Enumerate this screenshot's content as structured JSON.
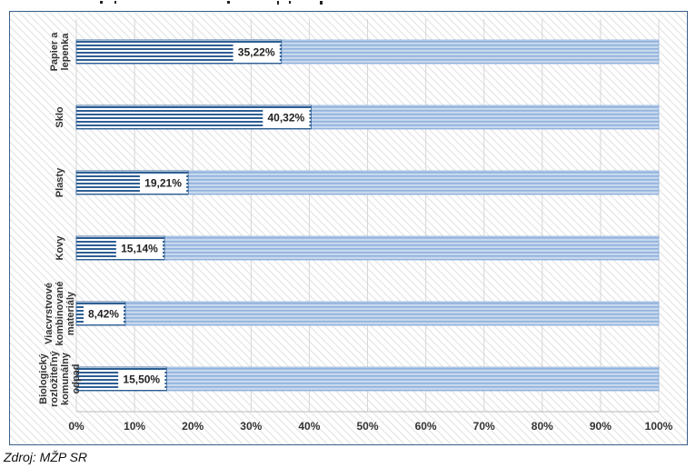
{
  "source_note": "Zdroj: MŽP SR",
  "colors": {
    "frame": "#3a5f8a",
    "bar_dark": "#2e5e93",
    "bar_light": "#a9c3e4",
    "grid": "#d6d6d6"
  },
  "chart_data": {
    "type": "bar",
    "orientation": "horizontal",
    "stacked": true,
    "categories": [
      [
        "Papier a",
        "lepenka"
      ],
      [
        "Sklo"
      ],
      [
        "Plasty"
      ],
      [
        "Kovy"
      ],
      [
        "Viacvrstvové",
        "kombinované",
        "materiály"
      ],
      [
        "Biologický",
        "rozložiteľný",
        "komunálny",
        "odpad"
      ]
    ],
    "values": [
      35.22,
      40.32,
      19.21,
      15.14,
      8.42,
      15.5
    ],
    "value_labels": [
      "35,22%",
      "40,32%",
      "19,21%",
      "15,14%",
      "8,42%",
      "15,50%"
    ],
    "xlim": [
      0,
      100
    ],
    "xticks": [
      "0%",
      "10%",
      "20%",
      "30%",
      "40%",
      "50%",
      "60%",
      "70%",
      "80%",
      "90%",
      "100%"
    ],
    "grid": true
  }
}
